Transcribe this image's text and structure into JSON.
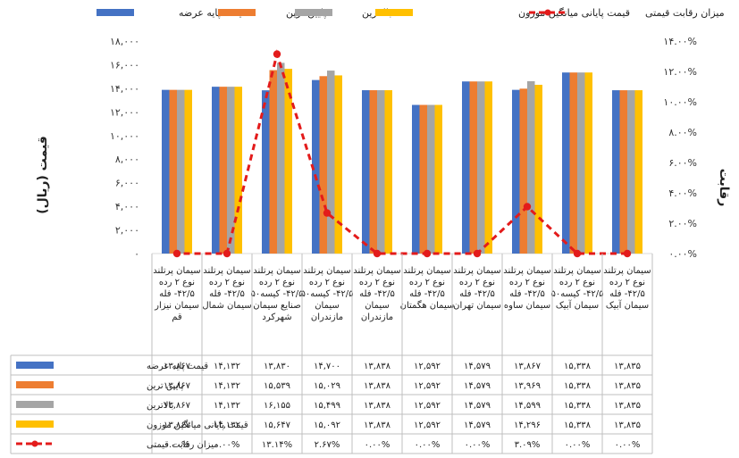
{
  "chart_data": {
    "type": "bar",
    "categories": [
      "سیمان پرتلند نوع ۲ رده ۴۲/۵- فله سیمان آبیک",
      "سیمان پرتلند نوع ۲ رده ۴۲/۵- کیسه۵۰ سیمان آبیک",
      "سیمان پرتلند نوع ۲ رده ۴۲/۵- فله سیمان ساوه",
      "سیمان پرتلند نوع ۲ رده ۴۲/۵- فله سیمان تهران",
      "سیمان پرتلند نوع ۲ رده ۴۲/۵- فله سیمان هگمتان",
      "سیمان پرتلند نوع ۲ رده ۴۲/۵- فله سیمان مازندران",
      "سیمان پرتلند نوع ۲ رده ۴۲/۵- کیسه۵۰ سیمان مازندران",
      "سیمان پرتلند نوع ۲ رده ۴۲/۵- کیسه۵۰ صنایع سیمان شهرکرد",
      "سیمان پرتلند نوع ۲ رده ۴۲/۵- فله سیمان شمال",
      "سیمان پرتلند نوع ۲ رده ۴۲/۵- فله سیمان نیزار قم"
    ],
    "series": [
      {
        "name": "قیمت پایه عرضه",
        "color": "#4472C4",
        "values": [
          13835,
          15338,
          13867,
          14579,
          12592,
          13838,
          14700,
          13830,
          14132,
          13867
        ],
        "labels": [
          "۱۳,۸۳۵",
          "۱۵,۳۳۸",
          "۱۳,۸۶۷",
          "۱۴,۵۷۹",
          "۱۲,۵۹۲",
          "۱۳,۸۳۸",
          "۱۴,۷۰۰",
          "۱۳,۸۳۰",
          "۱۴,۱۳۲",
          "۱۳,۸۶۷"
        ]
      },
      {
        "name": "پایین ترین",
        "color": "#ED7D31",
        "values": [
          13835,
          15338,
          13969,
          14579,
          12592,
          13838,
          15029,
          15539,
          14132,
          13867
        ],
        "labels": [
          "۱۳,۸۳۵",
          "۱۵,۳۳۸",
          "۱۳,۹۶۹",
          "۱۴,۵۷۹",
          "۱۲,۵۹۲",
          "۱۳,۸۳۸",
          "۱۵,۰۲۹",
          "۱۵,۵۳۹",
          "۱۴,۱۳۲",
          "۱۳,۸۶۷"
        ]
      },
      {
        "name": "بالاترین",
        "color": "#A5A5A5",
        "values": [
          13835,
          15338,
          14599,
          14579,
          12592,
          13838,
          15499,
          16155,
          14132,
          13867
        ],
        "labels": [
          "۱۳,۸۳۵",
          "۱۵,۳۳۸",
          "۱۴,۵۹۹",
          "۱۴,۵۷۹",
          "۱۲,۵۹۲",
          "۱۳,۸۳۸",
          "۱۵,۴۹۹",
          "۱۶,۱۵۵",
          "۱۴,۱۳۲",
          "۱۳,۸۶۷"
        ]
      },
      {
        "name": "قیمت پایانی میانگین موزون",
        "color": "#FFC000",
        "values": [
          13835,
          15338,
          14296,
          14579,
          12592,
          13838,
          15092,
          15647,
          14132,
          13867
        ],
        "labels": [
          "۱۳,۸۳۵",
          "۱۵,۳۳۸",
          "۱۴,۲۹۶",
          "۱۴,۵۷۹",
          "۱۲,۵۹۲",
          "۱۳,۸۳۸",
          "۱۵,۰۹۲",
          "۱۵,۶۴۷",
          "۱۴,۱۳۲",
          "۱۳,۸۶۷"
        ]
      }
    ],
    "line_series": {
      "name": "میزان رقابت قیمتی",
      "color": "#E31B1B",
      "values": [
        0.0,
        0.0,
        3.09,
        0.0,
        0.0,
        0.0,
        2.67,
        13.14,
        0.0,
        0.0
      ],
      "labels": [
        "۰.۰۰%",
        "۰.۰۰%",
        "۳.۰۹%",
        "۰.۰۰%",
        "۰.۰۰%",
        "۰.۰۰%",
        "۲.۶۷%",
        "۱۳.۱۴%",
        "۰.۰۰%",
        "۰.۰۰%"
      ]
    },
    "ylabel_left": "قیمت (ریال)",
    "ylabel_right": "رقابت",
    "ylim_left": [
      0,
      18000
    ],
    "ylim_right": [
      0,
      14
    ],
    "yticks_left": [
      "۰",
      "۲,۰۰۰",
      "۴,۰۰۰",
      "۶,۰۰۰",
      "۸,۰۰۰",
      "۱۰,۰۰۰",
      "۱۲,۰۰۰",
      "۱۴,۰۰۰",
      "۱۶,۰۰۰",
      "۱۸,۰۰۰"
    ],
    "yticks_right": [
      "۰.۰۰%",
      "۲.۰۰%",
      "۴.۰۰%",
      "۶.۰۰%",
      "۸.۰۰%",
      "۱۰.۰۰%",
      "۱۲.۰۰%",
      "۱۴.۰۰%"
    ],
    "legend_position": "top",
    "category_order": "right-to-left",
    "data_table": true
  }
}
